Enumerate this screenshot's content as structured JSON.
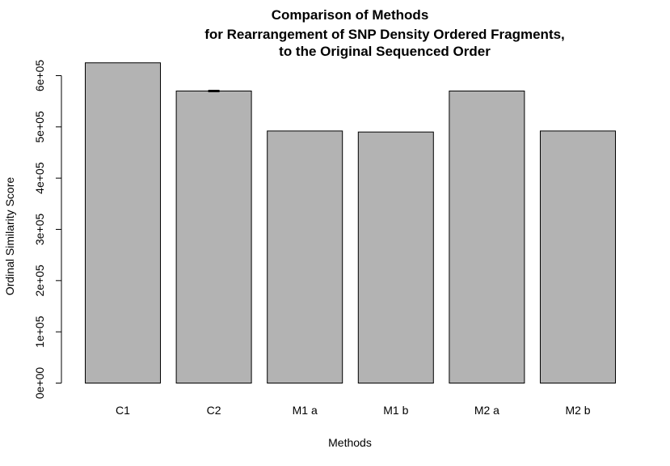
{
  "chart_data": {
    "type": "bar",
    "title_lines": [
      "Comparison of Methods",
      "for Rearrangement of SNP Density Ordered Fragments,",
      "to the Original Sequenced Order"
    ],
    "xlabel": "Methods",
    "ylabel": "Ordinal Similarity Score",
    "categories": [
      "C1",
      "C2",
      "M1 a",
      "M1 b",
      "M2 a",
      "M2 b"
    ],
    "values": [
      625000,
      570000,
      492000,
      490000,
      570000,
      492000
    ],
    "error_bars": [
      0,
      1500,
      0,
      0,
      0,
      0
    ],
    "yticks": [
      0,
      100000,
      200000,
      300000,
      400000,
      500000,
      600000
    ],
    "ytick_labels": [
      "0e+00",
      "1e+05",
      "2e+05",
      "3e+05",
      "4e+05",
      "5e+05",
      "6e+05"
    ],
    "ylim": [
      0,
      630000
    ],
    "bar_color": "#b3b3b3",
    "grid": false,
    "legend": "none"
  }
}
